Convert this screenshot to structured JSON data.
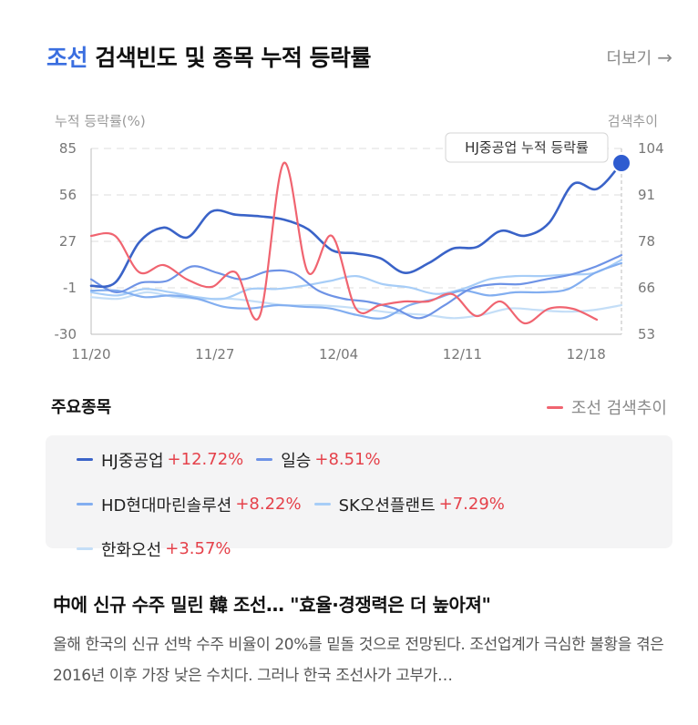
{
  "header": {
    "title_keyword": "조선",
    "title_rest": "검색빈도 및 종목 누적 등락률",
    "more_label": "더보기",
    "more_icon": "arrow-right-icon"
  },
  "chart_data": {
    "type": "line",
    "left_axis_label": "누적 등락률(%)",
    "right_axis_label": "검색추이",
    "left_ticks": [
      "85",
      "56",
      "27",
      "-1",
      "-30"
    ],
    "right_ticks": [
      "104",
      "91",
      "78",
      "66",
      "53"
    ],
    "ylim_left": [
      -30,
      85
    ],
    "ylim_right": [
      53,
      104
    ],
    "x_ticks": [
      "11/20",
      "11/27",
      "12/04",
      "12/11",
      "12/18"
    ],
    "grid": true,
    "tooltip": "HJ중공업 누적 등락률",
    "n_points": 31,
    "stock_series": [
      {
        "name": "HJ중공업",
        "color": "#3a63c8",
        "width": 2.6,
        "values": [
          0,
          2,
          27,
          36,
          30,
          46,
          44,
          43,
          41,
          35,
          22,
          20,
          17,
          8,
          14,
          23,
          24,
          34,
          31,
          39,
          63,
          60,
          76
        ]
      },
      {
        "name": "일승",
        "color": "#6e93e6",
        "width": 2.2,
        "values": [
          4,
          -4,
          2,
          3,
          12,
          8,
          4,
          9,
          8,
          -3,
          -8,
          -10,
          -14,
          -20,
          -12,
          -2,
          1,
          1,
          4,
          7,
          12,
          19
        ]
      },
      {
        "name": "HD현대마린솔루션",
        "color": "#82aef0",
        "width": 2.2,
        "values": [
          -3,
          -3,
          -7,
          -6,
          -8,
          -13,
          -14,
          -12,
          -13,
          -14,
          -18,
          -20,
          -12,
          -8,
          -3,
          -6,
          -4,
          -4,
          -2,
          8,
          14
        ]
      },
      {
        "name": "SK오션플랜트",
        "color": "#a7cdf7",
        "width": 2.2,
        "values": [
          -4,
          -6,
          -2,
          -4,
          -7,
          -8,
          -2,
          -2,
          0,
          3,
          6,
          1,
          -1,
          -5,
          -2,
          4,
          6,
          6,
          7,
          8,
          16
        ]
      },
      {
        "name": "한화오선",
        "color": "#c4def7",
        "width": 2.2,
        "values": [
          -7,
          -8,
          -4,
          -7,
          -8,
          -8,
          -10,
          -12,
          -12,
          -13,
          -15,
          -17,
          -18,
          -20,
          -18,
          -14,
          -15,
          -16,
          -15,
          -12
        ]
      }
    ],
    "search_series": {
      "name": "조선 검색추이",
      "color": "#f06470",
      "width": 2.2,
      "values": [
        80,
        80,
        70,
        72,
        68,
        66,
        70,
        58,
        100,
        70,
        80,
        60,
        61,
        62,
        62,
        64,
        58,
        62,
        56,
        60,
        60,
        57
      ]
    }
  },
  "legend": {
    "section_title": "주요종목",
    "search_label": "조선 검색추이"
  },
  "stocks": [
    {
      "name": "HJ중공업",
      "change": "+12.72%",
      "color": "#3a63c8"
    },
    {
      "name": "일승",
      "change": "+8.51%",
      "color": "#6e93e6"
    },
    {
      "name": "HD현대마린솔루션",
      "change": "+8.22%",
      "color": "#82aef0"
    },
    {
      "name": "SK오션플랜트",
      "change": "+7.29%",
      "color": "#a7cdf7"
    },
    {
      "name": "한화오선",
      "change": "+3.57%",
      "color": "#c4def7"
    }
  ],
  "news": {
    "title": "中에 신규 수주 밀린 韓 조선… \"효율·경쟁력은 더 높아져\"",
    "body": "올해 한국의 신규 선박 수주 비율이 20%를 밑돌 것으로 전망된다. 조선업계가 극심한 불황을 겪은 2016년 이후 가장 낮은 수치다. 그러나 한국 조선사가 고부가…"
  }
}
